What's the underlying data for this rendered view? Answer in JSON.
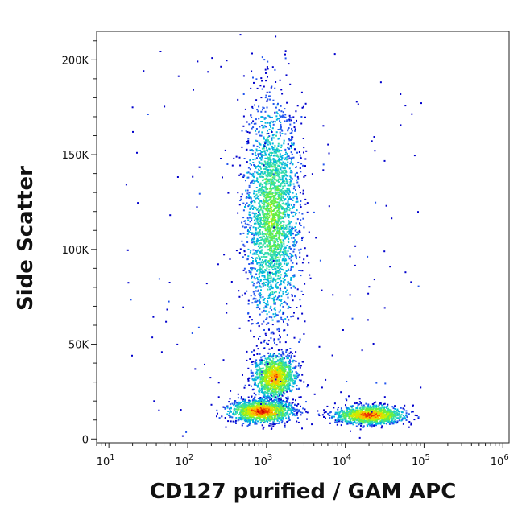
{
  "chart_data": {
    "type": "scatter",
    "style": "density-dot-plot",
    "xlabel": "CD127 purified / GAM APC",
    "ylabel": "Side Scatter",
    "x_scale": "log",
    "xlim": [
      7,
      1200000
    ],
    "ylim": [
      -2000,
      215000
    ],
    "x_ticks": [
      {
        "base": "10",
        "exp": "1",
        "value": 10
      },
      {
        "base": "10",
        "exp": "2",
        "value": 100
      },
      {
        "base": "10",
        "exp": "3",
        "value": 1000
      },
      {
        "base": "10",
        "exp": "4",
        "value": 10000
      },
      {
        "base": "10",
        "exp": "5",
        "value": 100000
      },
      {
        "base": "10",
        "exp": "6",
        "value": 1000000
      }
    ],
    "y_ticks": [
      {
        "label": "0",
        "value": 0
      },
      {
        "label": "50K",
        "value": 50000
      },
      {
        "label": "100K",
        "value": 100000
      },
      {
        "label": "150K",
        "value": 150000
      },
      {
        "label": "200K",
        "value": 200000
      }
    ],
    "density_colors": [
      "#0000cc",
      "#2255ee",
      "#00b4e0",
      "#33ddaa",
      "#66ee44",
      "#ccee00",
      "#ffbb00",
      "#ee3300",
      "#cc0000"
    ],
    "populations": [
      {
        "name": "",
        "x_center": 1150,
        "x_spread_decades": 0.17,
        "y_center": 118000,
        "y_spread": 30000,
        "density": 0.55
      },
      {
        "name": "",
        "x_center": 1250,
        "x_spread_decades": 0.14,
        "y_center": 33000,
        "y_spread": 6000,
        "density": 0.85
      },
      {
        "name": "",
        "x_center": 850,
        "x_spread_decades": 0.2,
        "y_center": 15000,
        "y_spread": 3000,
        "density": 1.0
      },
      {
        "name": "",
        "x_center": 20000,
        "x_spread_decades": 0.22,
        "y_center": 13000,
        "y_spread": 2500,
        "density": 0.95
      }
    ]
  }
}
